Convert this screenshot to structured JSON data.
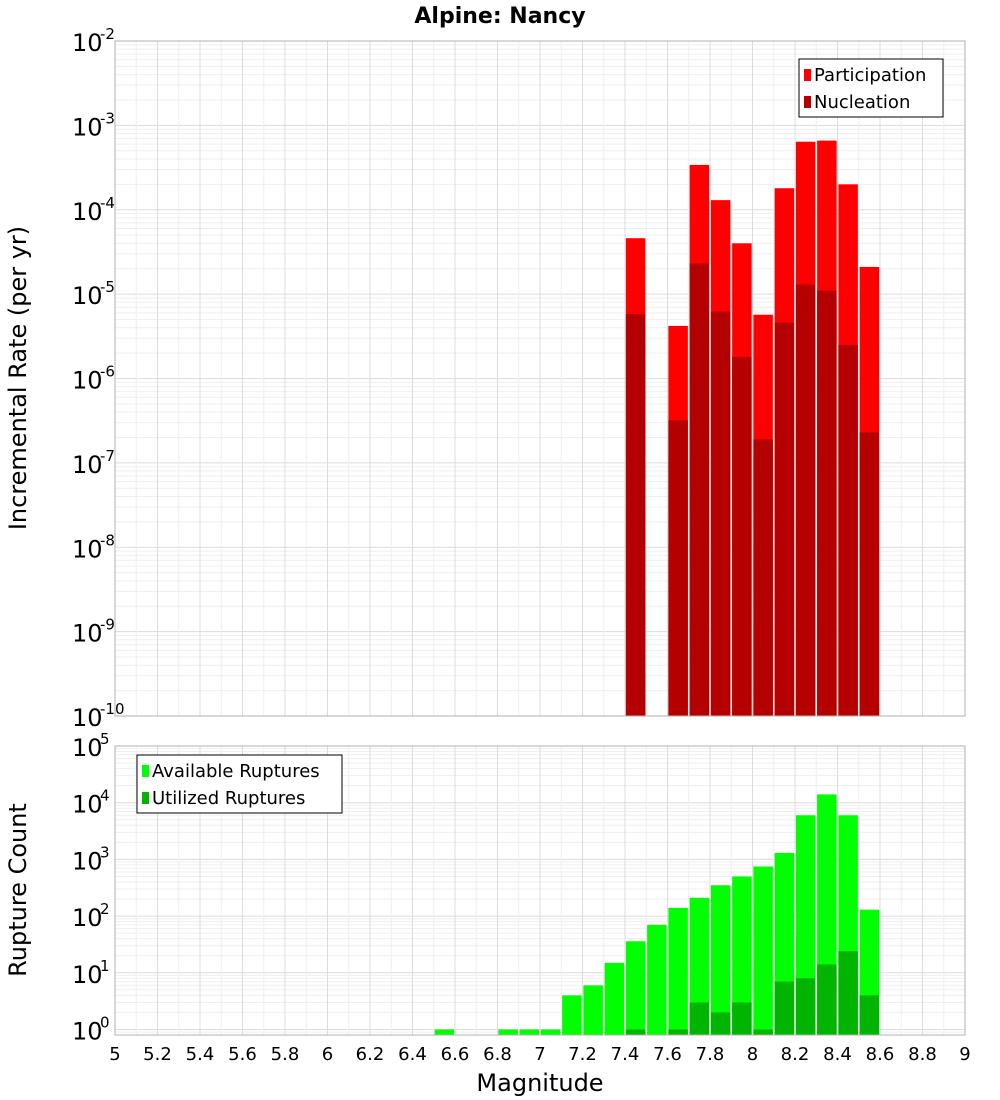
{
  "title": "Alpine: Nancy",
  "xlabel": "Magnitude",
  "x_ticks": [
    "5",
    "5.2",
    "5.4",
    "5.6",
    "5.8",
    "6",
    "6.2",
    "6.4",
    "6.6",
    "6.8",
    "7",
    "7.2",
    "7.4",
    "7.6",
    "7.8",
    "8",
    "8.2",
    "8.4",
    "8.6",
    "8.8",
    "9"
  ],
  "chart_data": [
    {
      "type": "bar",
      "ylabel": "Incremental Rate (per yr)",
      "yscale": "log",
      "ylim": [
        1e-10,
        0.01
      ],
      "y_ticks": [
        {
          "base": "10",
          "exp": "-10"
        },
        {
          "base": "10",
          "exp": "-9"
        },
        {
          "base": "10",
          "exp": "-8"
        },
        {
          "base": "10",
          "exp": "-7"
        },
        {
          "base": "10",
          "exp": "-6"
        },
        {
          "base": "10",
          "exp": "-5"
        },
        {
          "base": "10",
          "exp": "-4"
        },
        {
          "base": "10",
          "exp": "-3"
        },
        {
          "base": "10",
          "exp": "-2"
        }
      ],
      "xlim": [
        5,
        9
      ],
      "grid": true,
      "legend_position": "top-right",
      "x": [
        7.45,
        7.65,
        7.75,
        7.85,
        7.95,
        8.05,
        8.15,
        8.25,
        8.35,
        8.45,
        8.55
      ],
      "series": [
        {
          "name": "Participation",
          "color": "#ff0000",
          "values": [
            4.6e-05,
            4.2e-06,
            0.00034,
            0.00013,
            4e-05,
            5.7e-06,
            0.00018,
            0.00064,
            0.00066,
            0.0002,
            2.1e-05
          ]
        },
        {
          "name": "Nucleation",
          "color": "#b40000",
          "values": [
            5.8e-06,
            3.2e-07,
            2.3e-05,
            6.2e-06,
            1.8e-06,
            1.9e-07,
            4.6e-06,
            1.3e-05,
            1.1e-05,
            2.5e-06,
            2.3e-07
          ]
        }
      ]
    },
    {
      "type": "bar",
      "ylabel": "Rupture Count",
      "yscale": "log",
      "ylim": [
        0.8,
        100000.0
      ],
      "y_ticks": [
        {
          "base": "10",
          "exp": "0"
        },
        {
          "base": "10",
          "exp": "1"
        },
        {
          "base": "10",
          "exp": "2"
        },
        {
          "base": "10",
          "exp": "3"
        },
        {
          "base": "10",
          "exp": "4"
        },
        {
          "base": "10",
          "exp": "5"
        }
      ],
      "xlim": [
        5,
        9
      ],
      "grid": true,
      "legend_position": "top-left",
      "x": [
        6.55,
        6.85,
        6.95,
        7.05,
        7.15,
        7.25,
        7.35,
        7.45,
        7.55,
        7.65,
        7.75,
        7.85,
        7.95,
        8.05,
        8.15,
        8.25,
        8.35,
        8.45,
        8.55
      ],
      "series": [
        {
          "name": "Available Ruptures",
          "color": "#00ff00",
          "values": [
            1,
            1,
            1,
            1,
            4,
            6,
            15,
            36,
            70,
            140,
            210,
            350,
            500,
            750,
            1300,
            6000,
            14000,
            6000,
            130
          ]
        },
        {
          "name": "Utilized Ruptures",
          "color": "#00b400",
          "values": [
            0,
            0,
            0,
            0,
            0,
            0,
            0,
            1,
            0,
            1,
            3,
            2,
            3,
            1,
            7,
            8,
            14,
            24,
            4
          ]
        }
      ]
    }
  ]
}
